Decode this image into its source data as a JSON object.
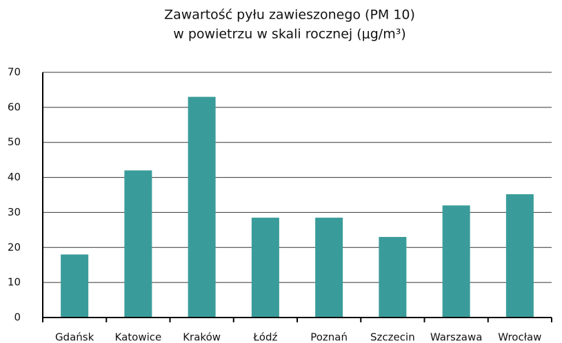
{
  "chart_data": {
    "type": "bar",
    "title": [
      "Zawartość pyłu zawieszonego (PM 10)",
      "w powietrzu w skali rocznej (μg/m³)"
    ],
    "categories": [
      "Gdańsk",
      "Katowice",
      "Kraków",
      "Łódź",
      "Poznań",
      "Szczecin",
      "Warszawa",
      "Wrocław"
    ],
    "values": [
      18,
      42,
      63,
      28.5,
      28.5,
      23,
      32,
      35.2
    ],
    "color": "#3a9c9a",
    "ylim": [
      0,
      70
    ],
    "yticks": [
      0,
      10,
      20,
      30,
      40,
      50,
      60,
      70
    ],
    "grid": true
  }
}
